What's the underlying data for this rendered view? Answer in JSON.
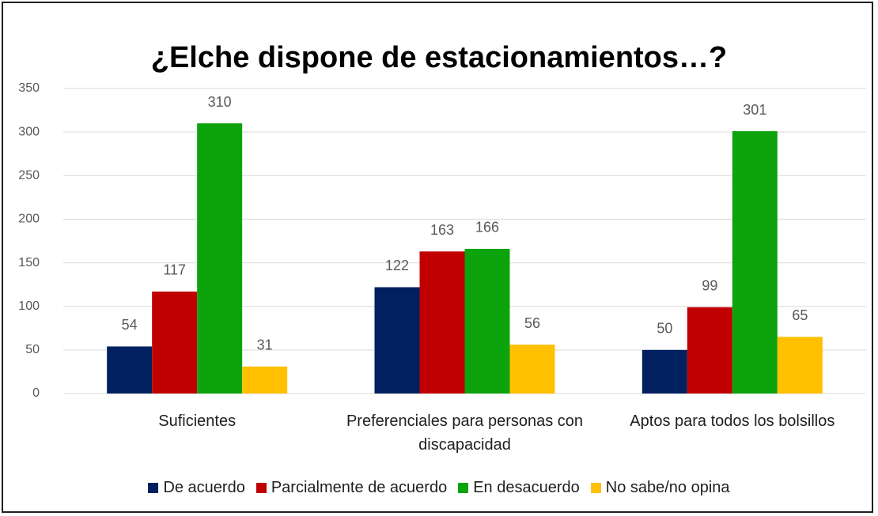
{
  "chart_data": {
    "type": "bar",
    "title": "¿Elche dispone de estacionamientos…?",
    "categories": [
      "Suficientes",
      "Preferenciales para personas con discapacidad",
      "Aptos para todos los bolsillos"
    ],
    "series": [
      {
        "name": "De acuerdo",
        "color": "#002060",
        "values": [
          54,
          122,
          50
        ]
      },
      {
        "name": "Parcialmente de acuerdo",
        "color": "#c00000",
        "values": [
          117,
          163,
          99
        ]
      },
      {
        "name": "En desacuerdo",
        "color": "#0ca30c",
        "values": [
          310,
          166,
          301
        ]
      },
      {
        "name": "No sabe/no opina",
        "color": "#ffc000",
        "values": [
          31,
          56,
          65
        ]
      }
    ],
    "ylim": [
      0,
      350
    ],
    "yticks": [
      0,
      50,
      100,
      150,
      200,
      250,
      300,
      350
    ],
    "grid": true,
    "legend": "bottom"
  }
}
